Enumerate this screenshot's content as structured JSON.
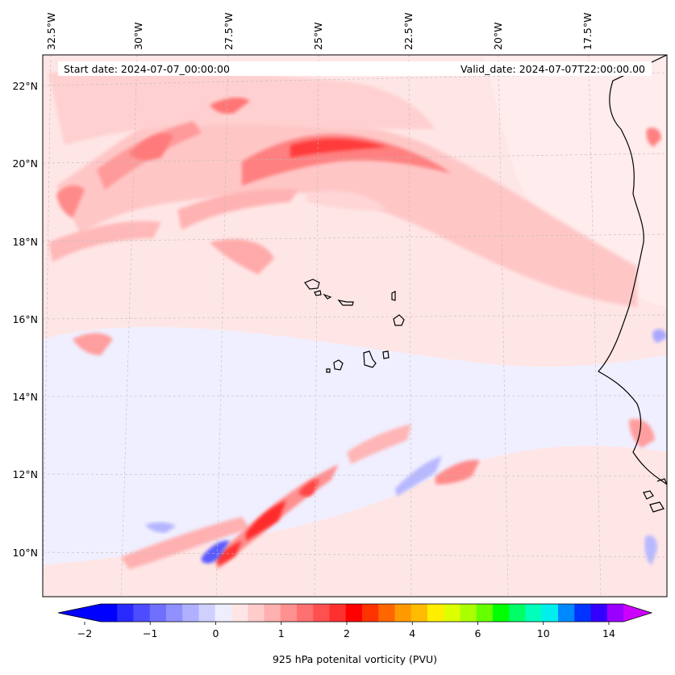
{
  "header": {
    "start_date": "Start date: 2024-07-07_00:00:00",
    "valid_date": "Valid_date: 2024-07-07T22:00:00.00"
  },
  "map": {
    "lon_labels": [
      "32.5°W",
      "30°W",
      "27.5°W",
      "25°W",
      "22.5°W",
      "20°W",
      "17.5°W"
    ],
    "lat_labels": [
      "22°N",
      "20°N",
      "18°N",
      "16°N",
      "14°N",
      "12°N",
      "10°N"
    ],
    "gridlines": true,
    "coastline_color": "#000000"
  },
  "colorbar": {
    "title": "925 hPa potenital vorticity (PVU)",
    "tick_labels": [
      "−2",
      "−1",
      "0",
      "1",
      "2",
      "4",
      "6",
      "10",
      "14"
    ],
    "extend": "both",
    "colors": [
      "#0000ff",
      "#2a2aff",
      "#4d4dff",
      "#7070ff",
      "#9090ff",
      "#b0b0ff",
      "#d0d0ff",
      "#eeeeff",
      "#ffe6e6",
      "#ffcccc",
      "#ffb0b0",
      "#ff9090",
      "#ff7070",
      "#ff5050",
      "#ff3030",
      "#ff0000",
      "#ff3300",
      "#ff6600",
      "#ff9900",
      "#ffbb00",
      "#ffee00",
      "#ddff00",
      "#aaff00",
      "#66ff00",
      "#00ff00",
      "#00ff66",
      "#00ffbb",
      "#00eeee",
      "#0088ff",
      "#0033ff",
      "#3300ff",
      "#9900ff"
    ],
    "under_color": "#0000ff",
    "over_color": "#cc00ff"
  }
}
